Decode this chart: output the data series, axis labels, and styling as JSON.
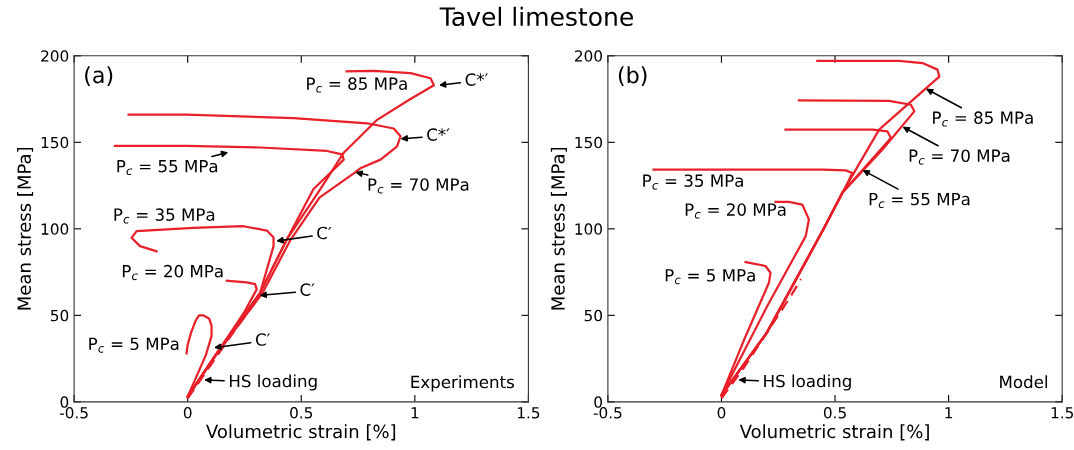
{
  "chart_data": [
    {
      "type": "line",
      "title": "Tavel limestone",
      "xlabel": "Volumetric strain [%]",
      "ylabel": "Mean stress [MPa]",
      "xlim": [
        -0.5,
        1.5
      ],
      "xticks": [
        -0.5,
        0,
        0.5,
        1,
        1.5
      ],
      "ylim": [
        0,
        200
      ],
      "yticks": [
        0,
        50,
        100,
        150,
        200
      ],
      "grid": false,
      "legend": false,
      "series": [
        {
          "color": "#e8202a",
          "line_style": "dashed",
          "x": [
            0,
            0.1,
            0.2,
            0.3
          ],
          "values": [
            2,
            21,
            40,
            58
          ]
        },
        {
          "color": "#e8202a",
          "x": [
            0,
            0.04,
            0.08,
            0.105,
            0.105,
            0.095,
            0.07,
            0.05,
            0.035,
            0.015,
            0,
            -0.005
          ],
          "values": [
            3,
            15,
            27,
            38,
            44,
            48,
            50,
            50,
            47,
            40,
            33,
            28
          ]
        },
        {
          "color": "#e8202a",
          "x": [
            0,
            0.128,
            0.25,
            0.304,
            0.297,
            0.26,
            0.172
          ],
          "values": [
            3,
            28,
            52,
            65,
            68,
            69,
            70
          ]
        },
        {
          "color": "#e8202a",
          "x": [
            0,
            0.128,
            0.319,
            0.378,
            0.378,
            0.349,
            0.246,
            0.025,
            -0.225,
            -0.247,
            -0.21,
            -0.137
          ],
          "values": [
            3,
            28,
            63,
            90,
            95,
            99,
            101.5,
            100.5,
            98.7,
            94.8,
            90,
            87
          ]
        },
        {
          "color": "#e8202a",
          "x": [
            0,
            0.128,
            0.319,
            0.437,
            0.554,
            0.657,
            0.687,
            0.68,
            0.613,
            0.319,
            -0.004,
            -0.21,
            -0.32
          ],
          "values": [
            3,
            28,
            63,
            94,
            123,
            136,
            140,
            143,
            145,
            147,
            148,
            148,
            148
          ]
        },
        {
          "color": "#e8202a",
          "x": [
            0,
            0.13,
            0.33,
            0.45,
            0.58,
            0.731,
            0.76,
            0.849,
            0.922,
            0.937,
            0.907,
            0.79,
            0.466,
            -0.004,
            -0.26
          ],
          "values": [
            3,
            28,
            63,
            93,
            118,
            132,
            135,
            140,
            147.7,
            153.5,
            158,
            161,
            164,
            166,
            166
          ]
        },
        {
          "color": "#e8202a",
          "x": [
            0,
            0.128,
            0.319,
            0.437,
            0.584,
            0.687,
            0.834,
            0.981,
            1.084,
            1.069,
            0.981,
            0.819,
            0.7
          ],
          "values": [
            3,
            28,
            63,
            94,
            123,
            144,
            163,
            175,
            183,
            187,
            190,
            191.3,
            191
          ]
        }
      ],
      "annotations": [
        "(a)",
        "Experiments",
        "P$_{c}$ = 85 MPa",
        {
          "text": "C*′",
          "x": 1.106,
          "y": 183
        },
        {
          "text": "C*′",
          "x": 0.937,
          "y": 152
        },
        {
          "text": "P$_{c}$ = 55 MPa",
          "x": 0.179,
          "y": 144.2
        },
        {
          "text": "P$_{c}$ = 70 MPa",
          "x": 0.738,
          "y": 132.7
        },
        "P$_{c}$ = 35 MPa",
        {
          "text": "C′",
          "x": 0.39,
          "y": 92.9
        },
        "P$_{c}$ = 20 MPa",
        {
          "text": "C′",
          "x": 0.316,
          "y": 61.5
        },
        "P$_{c}$ = 5 MPa",
        {
          "text": "C′",
          "x": 0.116,
          "y": 31.3
        },
        {
          "text": "HS loading",
          "x": 0.072,
          "y": 12.7
        }
      ]
    },
    {
      "type": "line",
      "xlabel": "Volumetric strain [%]",
      "ylabel": "Mean stress [MPa]",
      "xlim": [
        -0.5,
        1.5
      ],
      "xticks": [
        -0.5,
        0,
        0.5,
        1,
        1.5
      ],
      "ylim": [
        0,
        200
      ],
      "yticks": [
        0,
        50,
        100,
        150,
        200
      ],
      "grid": false,
      "legend": false,
      "series": [
        {
          "color": "#e8202a",
          "line_style": "dashed",
          "x": [
            0,
            0.1,
            0.2,
            0.3,
            0.35
          ],
          "values": [
            2,
            20,
            40,
            60,
            71
          ]
        },
        {
          "color": "#e8202a",
          "x": [
            0,
            0.1,
            0.209,
            0.216,
            0.194,
            0.106
          ],
          "values": [
            3.8,
            36,
            68.8,
            74.6,
            78.5,
            80.8
          ]
        },
        {
          "color": "#e8202a",
          "x": [
            0,
            0.2,
            0.371,
            0.385,
            0.356,
            0.297,
            0.238
          ],
          "values": [
            3.8,
            55,
            95.8,
            105.4,
            114,
            115.6,
            115.6
          ]
        },
        {
          "color": "#e8202a",
          "x": [
            0,
            0.2,
            0.45,
            0.55,
            0.576,
            0.547,
            0.444,
            -0.299
          ],
          "values": [
            3.8,
            40,
            100,
            125,
            132.3,
            133.8,
            134.2,
            134.2
          ]
        },
        {
          "color": "#e8202a",
          "x": [
            0,
            0.2,
            0.45,
            0.532,
            0.746,
            0.731,
            0.665,
            0.282
          ],
          "values": [
            3.8,
            40,
            100,
            120.8,
            152.5,
            156.3,
            157.3,
            157.3
          ]
        },
        {
          "color": "#e8202a",
          "x": [
            0,
            0.2,
            0.45,
            0.532,
            0.709,
            0.849,
            0.834,
            0.738,
            0.341
          ],
          "values": [
            3.8,
            40,
            100,
            120.8,
            145.8,
            167.9,
            171.7,
            174,
            174.2
          ]
        },
        {
          "color": "#e8202a",
          "x": [
            0,
            0.2,
            0.45,
            0.532,
            0.694,
            0.959,
            0.951,
            0.885,
            0.782,
            0.422
          ],
          "values": [
            3.8,
            40,
            100,
            120.8,
            157.3,
            188,
            192,
            195.8,
            197.1,
            197.1
          ]
        }
      ],
      "annotations": [
        "(b)",
        "Model",
        {
          "text": "P$_{c}$ = 85 MPa",
          "x": 0.9,
          "y": 181
        },
        {
          "text": "P$_{c}$ = 70 MPa",
          "x": 0.797,
          "y": 159
        },
        {
          "text": "P$_{c}$ = 55 MPa",
          "x": 0.621,
          "y": 134
        },
        "P$_{c}$ = 35 MPa",
        "P$_{c}$ = 20 MPa",
        "P$_{c}$ = 5 MPa",
        {
          "text": "HS loading",
          "x": 0.074,
          "y": 12.7
        }
      ]
    }
  ]
}
